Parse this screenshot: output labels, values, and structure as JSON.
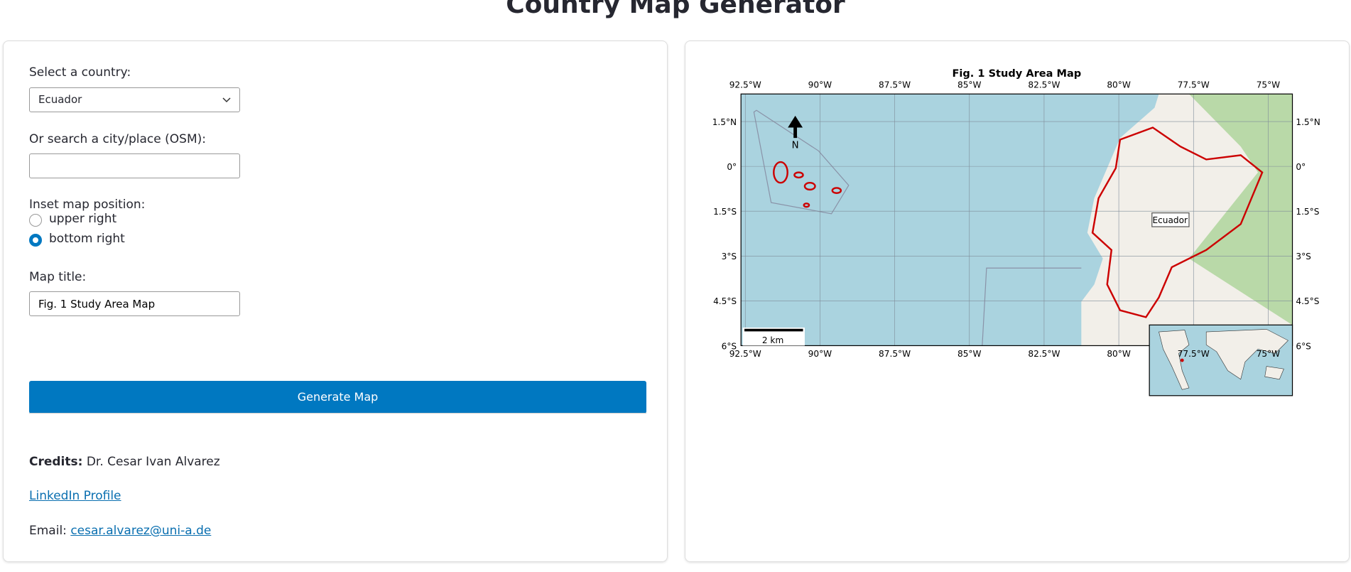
{
  "header": {
    "title": "Country Map Generator"
  },
  "form": {
    "country_label": "Select a country:",
    "country_value": "Ecuador",
    "search_label": "Or search a city/place (OSM):",
    "inset_label": "Inset map position:",
    "inset_options": [
      "upper right",
      "bottom right"
    ],
    "title_label": "Map title:",
    "title_value": "Fig. 1 Study Area Map",
    "button": "Generate Map"
  },
  "credits": {
    "label": "Credits:",
    "name": "Dr. Cesar Ivan Alvarez",
    "linkedin": "LinkedIn Profile",
    "email_label": "Email:",
    "email": "cesar.alvarez@uni-a.de"
  },
  "map": {
    "title": "Fig. 1 Study Area Map",
    "lon_labels": [
      "92.5°W",
      "90°W",
      "87.5°W",
      "85°W",
      "82.5°W",
      "80°W",
      "77.5°W",
      "75°W"
    ],
    "lat_labels": [
      "1.5°N",
      "0°",
      "1.5°S",
      "3°S",
      "4.5°S",
      "6°S"
    ],
    "north": "N",
    "scale": "2 km",
    "country_label": "Ecuador"
  }
}
